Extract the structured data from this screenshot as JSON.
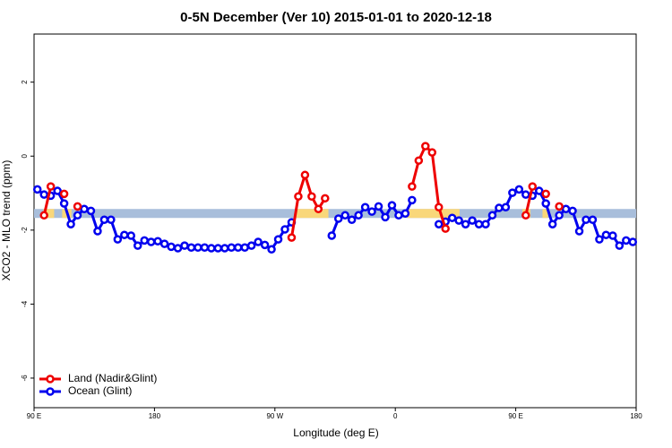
{
  "chart_data": {
    "type": "line",
    "title": "0-5N December (Ver 10)   2015-01-01 to 2020-12-18",
    "x_label": "Longitude (deg E)",
    "y_label": "XCO2 - MLO trend (ppm)",
    "xlim": [
      90,
      540
    ],
    "ylim": [
      -6.8,
      3.3
    ],
    "xticks": [
      {
        "value": 90,
        "label": "90 E"
      },
      180,
      {
        "value": 270,
        "label": "90 W"
      },
      {
        "value": 360,
        "label": "0"
      },
      {
        "value": 450,
        "label": "90 E"
      },
      {
        "value": 540,
        "label": "180"
      }
    ],
    "yticks": [
      -6,
      -4,
      -2,
      0,
      2
    ],
    "legend": "bottom-left",
    "band": {
      "y": -1.55,
      "color": "#a8bedb",
      "highlight_color": "#f9d77a",
      "highlights": [
        [
          97,
          105
        ],
        [
          111,
          118
        ],
        [
          285,
          310
        ],
        [
          369,
          408
        ],
        [
          455,
          461
        ],
        [
          470,
          474
        ]
      ]
    },
    "x": [
      92.5,
      97.5,
      102.5,
      107.5,
      112.5,
      117.5,
      122.5,
      127.5,
      132.5,
      137.5,
      142.5,
      147.5,
      152.5,
      157.5,
      162.5,
      167.5,
      172.5,
      177.5,
      182.5,
      187.5,
      192.5,
      197.5,
      202.5,
      207.5,
      212.5,
      217.5,
      222.5,
      227.5,
      232.5,
      237.5,
      242.5,
      247.5,
      252.5,
      257.5,
      262.5,
      267.5,
      272.5,
      277.5,
      282.5,
      287.5,
      292.5,
      297.5,
      302.5,
      307.5,
      312.5,
      317.5,
      322.5,
      327.5,
      332.5,
      337.5,
      342.5,
      347.5,
      352.5,
      357.5,
      362.5,
      367.5,
      372.5,
      377.5,
      382.5,
      387.5,
      392.5,
      397.5,
      402.5,
      407.5,
      412.5,
      417.5,
      422.5,
      427.5,
      432.5,
      437.5,
      442.5,
      447.5,
      452.5,
      457.5,
      462.5,
      467.5,
      472.5,
      477.5,
      482.5,
      487.5,
      492.5,
      497.5,
      502.5,
      507.5,
      512.5,
      517.5,
      522.5,
      527.5,
      532.5,
      537.5
    ],
    "series": [
      {
        "name": "Ocean (Glint)",
        "color": "#0000ee",
        "values": [
          -0.9,
          -1.04,
          -1.07,
          -0.94,
          -1.28,
          -1.84,
          -1.6,
          -1.43,
          -1.48,
          -2.03,
          -1.72,
          -1.72,
          -2.25,
          -2.13,
          -2.15,
          -2.42,
          -2.28,
          -2.32,
          -2.3,
          -2.37,
          -2.45,
          -2.49,
          -2.42,
          -2.47,
          -2.47,
          -2.47,
          -2.49,
          -2.49,
          -2.49,
          -2.47,
          -2.47,
          -2.47,
          -2.42,
          -2.32,
          -2.4,
          -2.52,
          -2.25,
          -1.98,
          -1.79,
          null,
          null,
          null,
          null,
          null,
          -2.15,
          -1.69,
          -1.6,
          -1.72,
          -1.6,
          -1.38,
          -1.5,
          -1.36,
          -1.65,
          -1.33,
          -1.6,
          -1.55,
          -1.19,
          null,
          null,
          null,
          -1.84,
          -1.77,
          -1.67,
          -1.74,
          -1.84,
          -1.74,
          -1.84,
          -1.84,
          -1.6,
          -1.4,
          -1.38,
          -0.99,
          -0.9,
          -1.04,
          -1.07,
          -0.94,
          -1.28,
          -1.84,
          -1.6,
          -1.43,
          -1.48,
          -2.03,
          -1.72,
          -1.72,
          -2.25,
          -2.13,
          -2.15,
          -2.42,
          -2.28,
          -2.32
        ]
      },
      {
        "name": "Land (Nadir&Glint)",
        "color": "#ee0000",
        "values": [
          null,
          -1.6,
          -0.82,
          null,
          -1.02,
          null,
          -1.36,
          null,
          null,
          null,
          null,
          null,
          null,
          null,
          null,
          null,
          null,
          null,
          null,
          null,
          null,
          null,
          null,
          null,
          null,
          null,
          null,
          null,
          null,
          null,
          null,
          null,
          null,
          null,
          null,
          null,
          null,
          null,
          -2.2,
          -1.09,
          -0.51,
          -1.09,
          -1.43,
          -1.14,
          null,
          null,
          null,
          null,
          null,
          null,
          null,
          null,
          null,
          null,
          null,
          null,
          -0.82,
          -0.12,
          0.27,
          0.1,
          -1.38,
          -1.96,
          null,
          null,
          null,
          null,
          null,
          null,
          null,
          null,
          null,
          null,
          null,
          -1.6,
          -0.82,
          null,
          -1.02,
          null,
          -1.36,
          null,
          null,
          null,
          null,
          null,
          null,
          null,
          null,
          null,
          null,
          null
        ]
      }
    ]
  }
}
